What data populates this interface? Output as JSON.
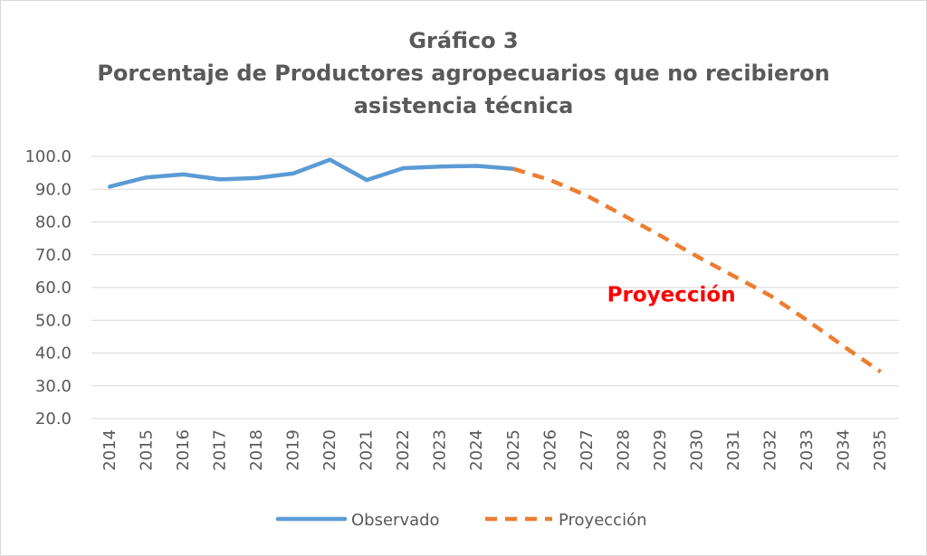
{
  "chart_data": {
    "type": "line",
    "title": "Gráfico 3",
    "subtitle_lines": [
      "Porcentaje de Productores agropecuarios que no recibieron",
      "asistencia técnica"
    ],
    "xlabel": "",
    "ylabel": "",
    "x": [
      "2014",
      "2015",
      "2016",
      "2017",
      "2018",
      "2019",
      "2020",
      "2021",
      "2022",
      "2023",
      "2024",
      "2025",
      "2026",
      "2027",
      "2028",
      "2029",
      "2030",
      "2031",
      "2032",
      "2033",
      "2034",
      "2035"
    ],
    "yticks": [
      "20.0",
      "30.0",
      "40.0",
      "50.0",
      "60.0",
      "70.0",
      "80.0",
      "90.0",
      "100.0"
    ],
    "ylim": [
      20,
      100
    ],
    "grid": true,
    "legend_position": "bottom",
    "series": [
      {
        "name": "Observado",
        "style": "solid",
        "color": "#5b9bd5",
        "points": [
          [
            "2014",
            90.8
          ],
          [
            "2015",
            93.6
          ],
          [
            "2016",
            94.5
          ],
          [
            "2017",
            93.0
          ],
          [
            "2018",
            93.4
          ],
          [
            "2019",
            94.8
          ],
          [
            "2020",
            99.0
          ],
          [
            "2021",
            92.8
          ],
          [
            "2022",
            96.4
          ],
          [
            "2023",
            96.9
          ],
          [
            "2024",
            97.1
          ],
          [
            "2025",
            96.2
          ]
        ]
      },
      {
        "name": "Proyección",
        "style": "dashed",
        "color": "#ed7d31",
        "points": [
          [
            "2025",
            96.2
          ],
          [
            "2026",
            92.8
          ],
          [
            "2027",
            88.0
          ],
          [
            "2028",
            82.0
          ],
          [
            "2029",
            75.8
          ],
          [
            "2030",
            69.5
          ],
          [
            "2031",
            63.5
          ],
          [
            "2032",
            57.5
          ],
          [
            "2033",
            50.0
          ],
          [
            "2034",
            42.0
          ],
          [
            "2035",
            34.3
          ]
        ]
      }
    ],
    "annotations": [
      {
        "text": "Proyección",
        "x": "2029.3",
        "y": 58.0,
        "color": "#ff0000"
      }
    ]
  }
}
